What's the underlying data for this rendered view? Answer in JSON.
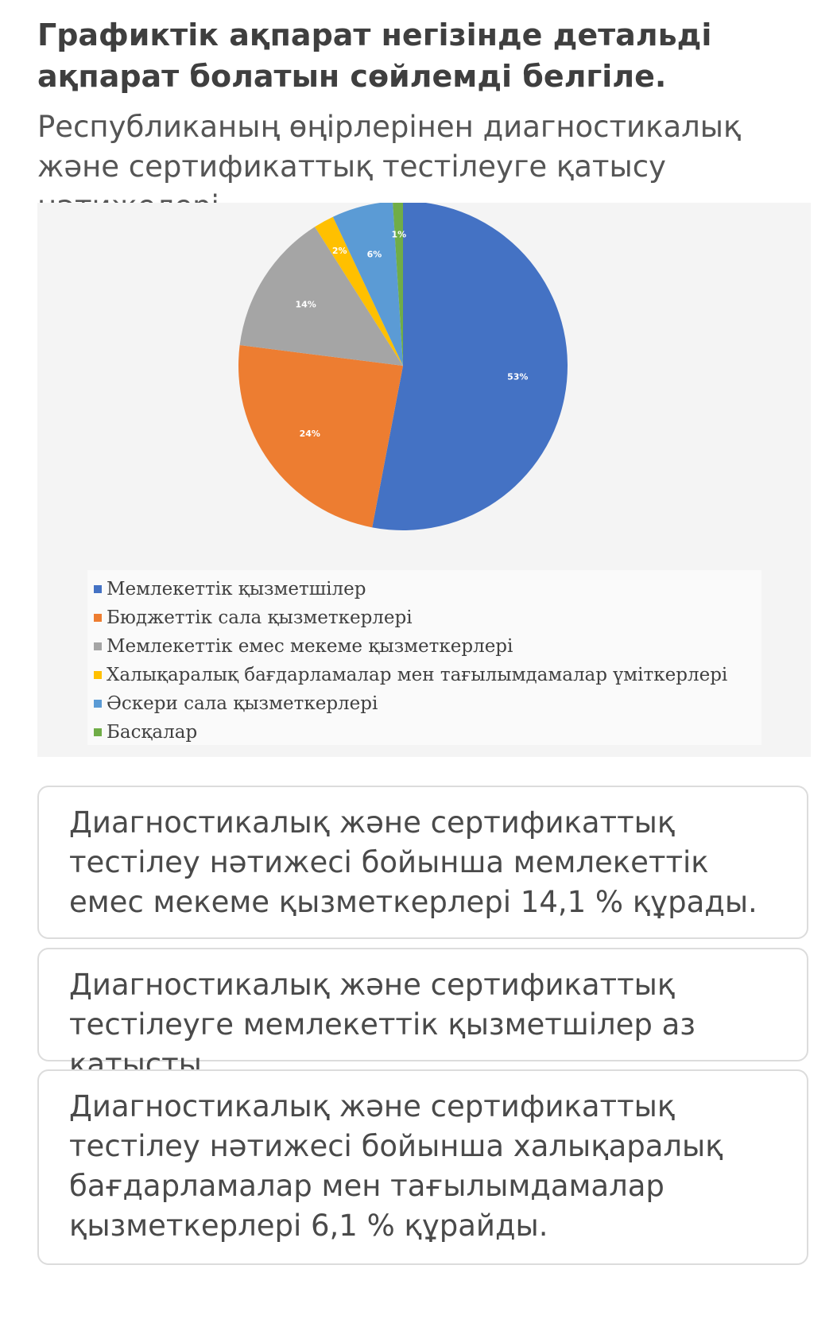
{
  "question": "Графиктік ақпарат негізінде детальді ақпарат болатын сөйлемді белгіле.",
  "subtitle": "Республиканың өңірлерінен диагностикалық және сертификаттық тестілеуге қатысу нәтижелері",
  "chart_data": {
    "type": "pie",
    "title": "",
    "categories": [
      "Мемлекеттік қызметшілер",
      "Бюджеттік сала қызметкерлері",
      "Мемлекеттік емес мекеме қызметкерлері",
      "Халықаралық бағдарламалар мен тағылымдамалар үміткерлері",
      "Әскери сала қызметкерлері",
      "Басқалар"
    ],
    "values": [
      53,
      24,
      14,
      2,
      6,
      1
    ],
    "labels": [
      "53%",
      "24%",
      "14%",
      "2%",
      "6%",
      "1%"
    ],
    "colors": [
      "#4472c4",
      "#ed7d31",
      "#a5a5a5",
      "#ffc000",
      "#5b9bd5",
      "#70ad47"
    ],
    "legend_position": "bottom"
  },
  "options": [
    "Диагностикалық және сертификаттық тестілеу нәтижесі бойынша мемлекеттік емес мекеме қызметкерлері 14,1 % құрады.",
    "Диагностикалық және сертификаттық тестілеуге мемлекеттік қызметшілер аз қатысты.",
    "Диагностикалық және сертификаттық тестілеу нәтижесі бойынша халықаралық бағдарламалар мен тағылымдамалар қызметкерлері 6,1 % құрайды."
  ]
}
